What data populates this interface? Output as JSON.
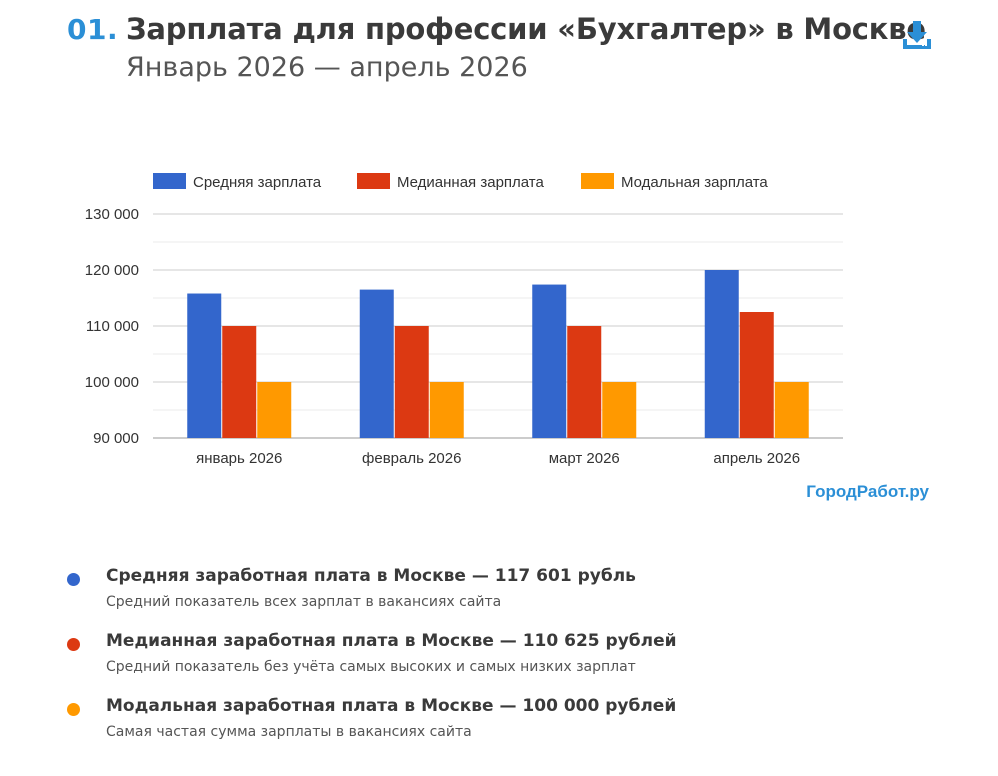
{
  "header": {
    "number": "01.",
    "title": "Зарплата для профессии «Бухгалтер» в Москве",
    "subtitle": "Январь 2026 — апрель 2026",
    "download_icon": "download-icon"
  },
  "brand": "ГородРабот.ру",
  "colors": {
    "accent": "#2b8fd6",
    "average": "#3366cc",
    "median": "#dc3912",
    "mode": "#ff9900",
    "grid": "#cccccc"
  },
  "chart_data": {
    "type": "bar",
    "categories": [
      "январь 2026",
      "февраль 2026",
      "март 2026",
      "апрель 2026"
    ],
    "series": [
      {
        "name": "Средняя зарплата",
        "color": "#3366cc",
        "values": [
          115800,
          116500,
          117400,
          120000
        ]
      },
      {
        "name": "Медианная зарплата",
        "color": "#dc3912",
        "values": [
          110000,
          110000,
          110000,
          112500
        ]
      },
      {
        "name": "Модальная зарплата",
        "color": "#ff9900",
        "values": [
          100000,
          100000,
          100000,
          100000
        ]
      }
    ],
    "ylim": [
      90000,
      130000
    ],
    "yticks": [
      90000,
      100000,
      110000,
      120000,
      130000
    ],
    "ytick_labels": [
      "90 000",
      "100 000",
      "110 000",
      "120 000",
      "130 000"
    ],
    "grid": true,
    "legend": "top",
    "title": "",
    "xlabel": "",
    "ylabel": ""
  },
  "summary": [
    {
      "title": "Средняя заработная плата в Москве — 117 601 рубль",
      "desc": "Средний показатель всех зарплат в вакансиях сайта",
      "color": "#3366cc"
    },
    {
      "title": "Медианная заработная плата в Москве — 110 625 рублей",
      "desc": "Средний показатель без учёта самых высоких и самых низких зарплат",
      "color": "#dc3912"
    },
    {
      "title": "Модальная заработная плата в Москве — 100 000 рублей",
      "desc": "Самая частая сумма зарплаты в вакансиях сайта",
      "color": "#ff9900"
    }
  ]
}
